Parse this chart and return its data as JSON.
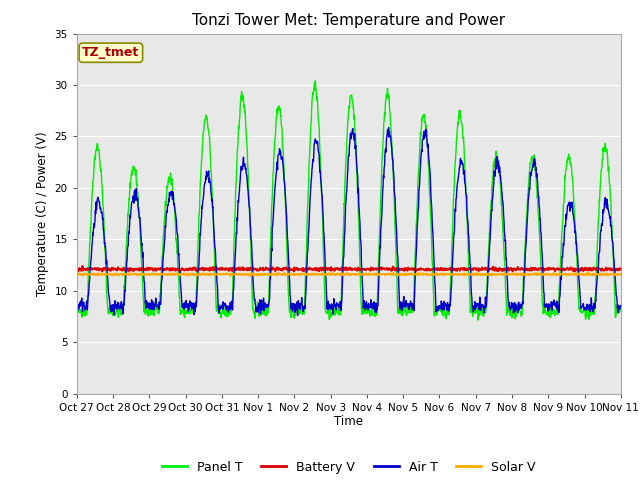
{
  "title": "Tonzi Tower Met: Temperature and Power",
  "ylabel": "Temperature (C) / Power (V)",
  "xlabel": "Time",
  "annotation": "TZ_tmet",
  "ylim": [
    0,
    35
  ],
  "yticks": [
    0,
    5,
    10,
    15,
    20,
    25,
    30,
    35
  ],
  "xtick_labels": [
    "Oct 27",
    "Oct 28",
    "Oct 29",
    "Oct 30",
    "Oct 31",
    "Nov 1",
    "Nov 2",
    "Nov 3",
    "Nov 4",
    "Nov 5",
    "Nov 6",
    "Nov 7",
    "Nov 8",
    "Nov 9",
    "Nov 10",
    "Nov 11"
  ],
  "panel_t_color": "#00ee00",
  "air_t_color": "#0000cc",
  "battery_v_color": "#dd0000",
  "solar_v_color": "#ffaa00",
  "bg_color": "#e8e8e8",
  "fig_bg": "#ffffff",
  "grid_color": "#ffffff",
  "legend_labels": [
    "Panel T",
    "Battery V",
    "Air T",
    "Solar V"
  ],
  "legend_colors": [
    "#00ee00",
    "#dd0000",
    "#0000cc",
    "#ffaa00"
  ],
  "battery_v_level": 12.1,
  "solar_v_level": 11.6
}
